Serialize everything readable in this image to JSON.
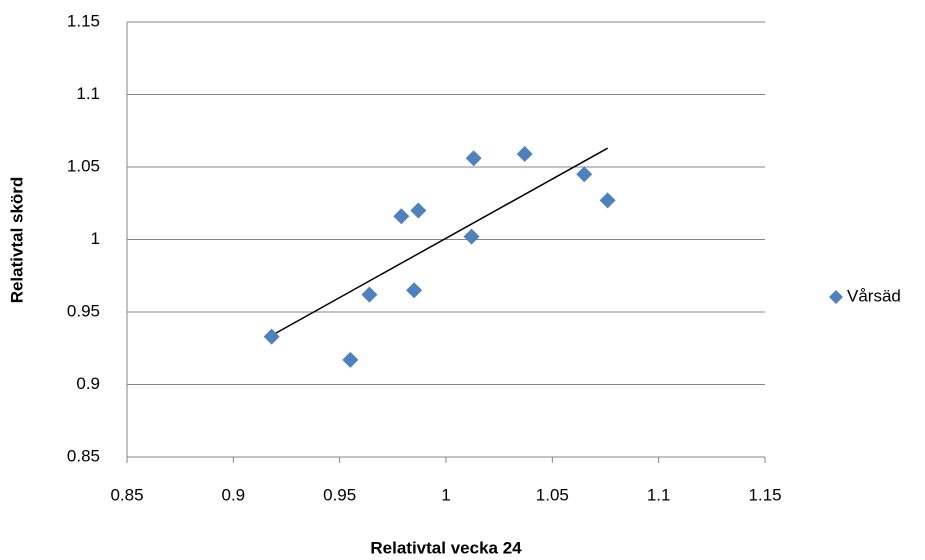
{
  "chart_data": {
    "type": "scatter",
    "x_label": "Relativtal vecka 24",
    "y_label": "Relativtal skörd",
    "series": [
      {
        "name": "Vårsäd",
        "color": "#4f81bd",
        "x": [
          0.918,
          0.955,
          0.964,
          0.979,
          0.987,
          0.985,
          1.012,
          1.013,
          1.037,
          1.065,
          1.076
        ],
        "values": [
          0.933,
          0.917,
          0.962,
          1.016,
          1.02,
          0.965,
          1.002,
          1.056,
          1.059,
          1.045,
          1.027
        ]
      }
    ],
    "xlim": [
      0.85,
      1.15
    ],
    "xticks": [
      0.85,
      0.9,
      0.95,
      1,
      1.05,
      1.1,
      1.15
    ],
    "ylim": [
      0.85,
      1.15
    ],
    "yticks": [
      0.85,
      0.9,
      0.95,
      1,
      1.05,
      1.1,
      1.15
    ],
    "grid": true,
    "trendline": "linear",
    "legend": "right"
  }
}
